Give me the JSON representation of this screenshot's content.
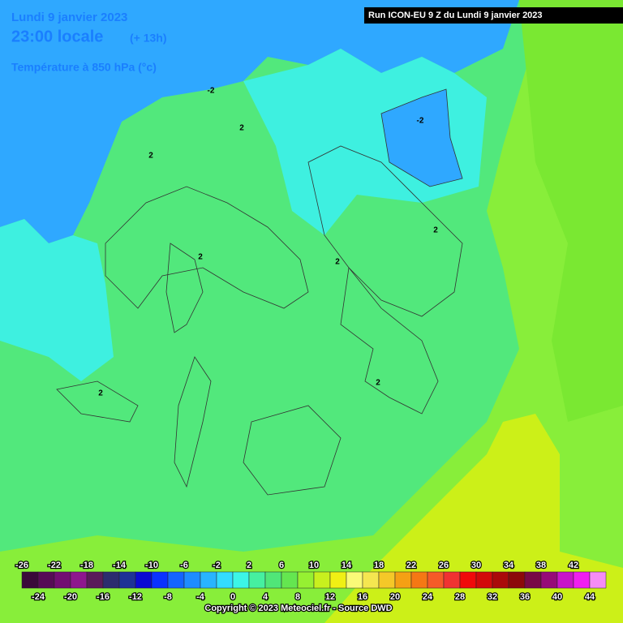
{
  "header": {
    "date": "Lundi 9 janvier 2023",
    "time": "23:00 locale",
    "lead": "(+ 13h)",
    "field": "Température à 850 hPa (°c)",
    "run": "Run ICON-EU 9 Z du Lundi 9 janvier 2023"
  },
  "contour_labels": [
    "-2",
    "2",
    "2",
    "-2",
    "2",
    "2",
    "2",
    "2",
    "2"
  ],
  "legend": {
    "labels_top": [
      "-26",
      "-22",
      "-18",
      "-14",
      "-10",
      "-6",
      "-2",
      "2",
      "6",
      "10",
      "14",
      "18",
      "22",
      "26",
      "30",
      "34",
      "38",
      "42"
    ],
    "labels_bottom": [
      "-24",
      "-20",
      "-16",
      "-12",
      "-8",
      "-4",
      "0",
      "4",
      "8",
      "12",
      "16",
      "20",
      "24",
      "28",
      "32",
      "36",
      "40",
      "44"
    ]
  },
  "footer": {
    "copyright": "Copyright © 2023 Meteociel.fr - Source DWD"
  }
}
